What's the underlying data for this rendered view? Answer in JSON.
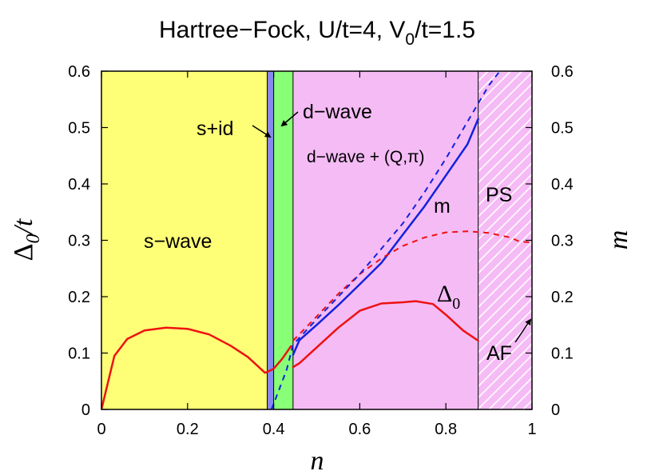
{
  "chart_data": {
    "type": "line",
    "title": "Hartree−Fock, U/t=4, V",
    "title_subscript": "0",
    "title_suffix": "/t=1.5",
    "xlabel": "n",
    "ylabel_left_symbol": "Δ",
    "ylabel_left_subscript": "0",
    "ylabel_left_suffix": "/t",
    "ylabel_right": "m",
    "xlim": [
      0,
      1
    ],
    "ylim": [
      0,
      0.6
    ],
    "y2lim": [
      0,
      0.6
    ],
    "x_ticks": [
      "0",
      "0.2",
      "0.4",
      "0.6",
      "0.8",
      "1"
    ],
    "x_tick_values": [
      0,
      0.2,
      0.4,
      0.6,
      0.8,
      1.0
    ],
    "y_ticks": [
      "0",
      "0.1",
      "0.2",
      "0.3",
      "0.4",
      "0.5",
      "0.6"
    ],
    "y_tick_values": [
      0,
      0.1,
      0.2,
      0.3,
      0.4,
      0.5,
      0.6
    ],
    "y2_ticks": [
      "0",
      "0.1",
      "0.2",
      "0.3",
      "0.4",
      "0.5",
      "0.6"
    ],
    "grid": false,
    "regions": [
      {
        "label": "s−wave",
        "x0": 0.0,
        "x1": 0.385,
        "color": "#ffff77"
      },
      {
        "label": "s+id",
        "x0": 0.385,
        "x1": 0.4,
        "color": "#8888ee"
      },
      {
        "label": "d−wave",
        "x0": 0.4,
        "x1": 0.445,
        "color": "#88ff77"
      },
      {
        "label": "d−wave + (Q,π)",
        "x0": 0.445,
        "x1": 0.875,
        "color": "#f5bbf5"
      },
      {
        "label": "PS",
        "x0": 0.875,
        "x1": 1.0,
        "color": "#f5bbf5",
        "hatched": true
      }
    ],
    "series": [
      {
        "name": "Δ",
        "name_subscript": "0",
        "style": "solid",
        "color": "#ee1111",
        "segments": [
          {
            "x": [
              0.0,
              0.03,
              0.06,
              0.1,
              0.15,
              0.2,
              0.25,
              0.3,
              0.34,
              0.38,
              0.4,
              0.42,
              0.44
            ],
            "y": [
              0.0,
              0.095,
              0.125,
              0.14,
              0.145,
              0.143,
              0.133,
              0.113,
              0.093,
              0.065,
              0.072,
              0.09,
              0.112
            ]
          },
          {
            "x": [
              0.445,
              0.46,
              0.5,
              0.55,
              0.6,
              0.65,
              0.7,
              0.73,
              0.77,
              0.8,
              0.84,
              0.875
            ],
            "y": [
              0.075,
              0.082,
              0.11,
              0.145,
              0.175,
              0.188,
              0.19,
              0.192,
              0.187,
              0.168,
              0.14,
              0.122
            ]
          }
        ]
      },
      {
        "name": "m",
        "style": "solid",
        "color": "#1122dd",
        "segments": [
          {
            "x": [
              0.445,
              0.46,
              0.5,
              0.55,
              0.6,
              0.65,
              0.7,
              0.75,
              0.8,
              0.85,
              0.875
            ],
            "y": [
              0.097,
              0.123,
              0.15,
              0.185,
              0.222,
              0.26,
              0.31,
              0.36,
              0.415,
              0.47,
              0.515
            ]
          }
        ]
      },
      {
        "name": "Δ₀ (dashed)",
        "style": "dashed",
        "color": "#ee1111",
        "segments": [
          {
            "x": [
              0.445,
              0.5,
              0.55,
              0.6,
              0.65,
              0.7,
              0.75,
              0.8,
              0.85,
              0.9,
              0.95,
              0.97,
              1.0
            ],
            "y": [
              0.122,
              0.165,
              0.205,
              0.24,
              0.268,
              0.29,
              0.305,
              0.314,
              0.316,
              0.313,
              0.305,
              0.298,
              0.296
            ]
          }
        ]
      },
      {
        "name": "m (dashed)",
        "style": "dashed",
        "color": "#1122dd",
        "segments": [
          {
            "x": [
              0.395,
              0.41,
              0.43,
              0.445,
              0.5,
              0.55,
              0.6,
              0.65,
              0.7,
              0.75,
              0.8,
              0.85,
              0.9,
              0.925
            ],
            "y": [
              0.0,
              0.03,
              0.07,
              0.115,
              0.16,
              0.2,
              0.24,
              0.285,
              0.33,
              0.385,
              0.445,
              0.51,
              0.575,
              0.6
            ]
          }
        ]
      }
    ],
    "annotations": {
      "s_wave": "s−wave",
      "s_id": "s+id",
      "d_wave": "d−wave",
      "d_wave_q": "d−wave + (Q,π)",
      "ps": "PS",
      "af": "AF",
      "m_label": "m",
      "delta_symbol": "Δ",
      "delta_subscript": "0"
    }
  }
}
